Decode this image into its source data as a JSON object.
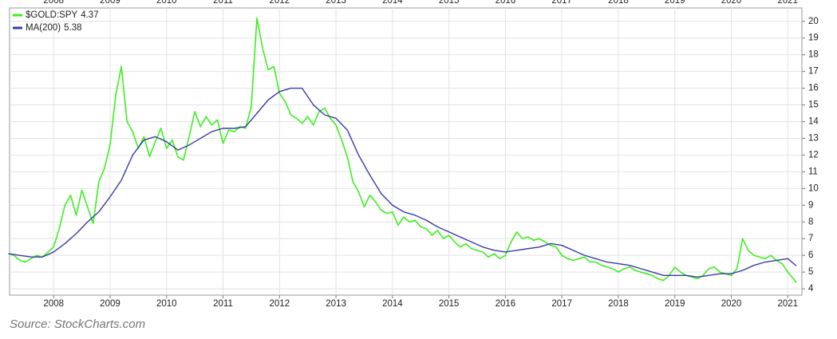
{
  "chart_data": {
    "type": "line",
    "source": "Source: StockCharts.com",
    "xlim": [
      2007.22,
      2021.25
    ],
    "xticks": [
      2008,
      2009,
      2010,
      2011,
      2012,
      2013,
      2014,
      2015,
      2016,
      2017,
      2018,
      2019,
      2020,
      2021
    ],
    "ylim": [
      3.62,
      20.8
    ],
    "yticks": [
      4,
      5,
      6,
      7,
      8,
      9,
      10,
      11,
      12,
      13,
      14,
      15,
      16,
      17,
      18,
      19,
      20
    ],
    "grid": true,
    "legend": "top-left",
    "series": [
      {
        "name": "$GOLD:SPY",
        "color": "#3def1f",
        "x": [
          2007.2,
          2007.3,
          2007.4,
          2007.5,
          2007.6,
          2007.7,
          2007.8,
          2007.9,
          2008.0,
          2008.1,
          2008.2,
          2008.3,
          2008.4,
          2008.5,
          2008.6,
          2008.7,
          2008.8,
          2008.9,
          2009.0,
          2009.1,
          2009.2,
          2009.3,
          2009.4,
          2009.5,
          2009.6,
          2009.7,
          2009.8,
          2009.9,
          2010.0,
          2010.1,
          2010.2,
          2010.3,
          2010.4,
          2010.5,
          2010.6,
          2010.7,
          2010.8,
          2010.9,
          2011.0,
          2011.1,
          2011.2,
          2011.3,
          2011.4,
          2011.5,
          2011.6,
          2011.7,
          2011.8,
          2011.9,
          2012.0,
          2012.1,
          2012.2,
          2012.3,
          2012.4,
          2012.5,
          2012.6,
          2012.7,
          2012.8,
          2012.9,
          2013.0,
          2013.1,
          2013.2,
          2013.3,
          2013.4,
          2013.5,
          2013.6,
          2013.7,
          2013.8,
          2013.9,
          2014.0,
          2014.1,
          2014.2,
          2014.3,
          2014.4,
          2014.5,
          2014.6,
          2014.7,
          2014.8,
          2014.9,
          2015.0,
          2015.1,
          2015.2,
          2015.3,
          2015.4,
          2015.5,
          2015.6,
          2015.7,
          2015.8,
          2015.9,
          2016.0,
          2016.1,
          2016.2,
          2016.3,
          2016.4,
          2016.5,
          2016.6,
          2016.7,
          2016.8,
          2016.9,
          2017.0,
          2017.1,
          2017.2,
          2017.3,
          2017.4,
          2017.5,
          2017.6,
          2017.7,
          2017.8,
          2017.9,
          2018.0,
          2018.1,
          2018.2,
          2018.3,
          2018.4,
          2018.5,
          2018.6,
          2018.7,
          2018.8,
          2018.9,
          2019.0,
          2019.1,
          2019.2,
          2019.3,
          2019.4,
          2019.5,
          2019.6,
          2019.7,
          2019.8,
          2019.9,
          2020.0,
          2020.1,
          2020.2,
          2020.3,
          2020.4,
          2020.5,
          2020.6,
          2020.7,
          2020.8,
          2020.9,
          2021.0,
          2021.1,
          2021.15
        ],
        "values": [
          6.1,
          6.0,
          5.7,
          5.6,
          5.8,
          6.0,
          5.9,
          6.2,
          6.5,
          7.6,
          9.0,
          9.6,
          8.4,
          9.9,
          8.9,
          7.9,
          10.4,
          11.2,
          12.6,
          15.6,
          17.3,
          14.0,
          13.4,
          12.4,
          13.1,
          11.9,
          12.8,
          13.6,
          12.4,
          12.9,
          11.9,
          11.7,
          13.1,
          14.6,
          13.7,
          14.3,
          13.8,
          14.1,
          12.7,
          13.5,
          13.4,
          13.7,
          13.6,
          14.9,
          20.2,
          18.4,
          17.1,
          17.3,
          15.7,
          15.2,
          14.4,
          14.2,
          13.9,
          14.3,
          13.8,
          14.6,
          14.8,
          14.2,
          13.8,
          12.9,
          11.9,
          10.4,
          9.8,
          8.9,
          9.6,
          9.2,
          8.7,
          8.5,
          8.6,
          7.8,
          8.3,
          8.0,
          8.1,
          7.7,
          7.6,
          7.2,
          7.5,
          7.0,
          7.2,
          6.8,
          6.5,
          6.7,
          6.4,
          6.3,
          6.2,
          5.9,
          6.1,
          5.8,
          6.0,
          6.8,
          7.4,
          7.0,
          7.1,
          6.9,
          7.0,
          6.8,
          6.6,
          6.5,
          6.0,
          5.8,
          5.7,
          5.8,
          5.9,
          5.6,
          5.6,
          5.4,
          5.3,
          5.2,
          5.0,
          5.2,
          5.3,
          5.1,
          5.0,
          4.9,
          4.8,
          4.6,
          4.5,
          4.8,
          5.3,
          5.0,
          4.8,
          4.7,
          4.6,
          4.8,
          5.2,
          5.3,
          5.0,
          4.9,
          4.8,
          5.2,
          7.0,
          6.3,
          6.0,
          5.9,
          5.8,
          6.0,
          5.7,
          5.5,
          5.0,
          4.6,
          4.37
        ]
      },
      {
        "name": "MA(200)",
        "color": "#3a3aa8",
        "x": [
          2007.2,
          2007.4,
          2007.6,
          2007.8,
          2008.0,
          2008.2,
          2008.4,
          2008.6,
          2008.8,
          2009.0,
          2009.2,
          2009.4,
          2009.6,
          2009.8,
          2010.0,
          2010.2,
          2010.4,
          2010.6,
          2010.8,
          2011.0,
          2011.2,
          2011.4,
          2011.6,
          2011.8,
          2012.0,
          2012.2,
          2012.4,
          2012.6,
          2012.8,
          2013.0,
          2013.2,
          2013.4,
          2013.6,
          2013.8,
          2014.0,
          2014.2,
          2014.4,
          2014.6,
          2014.8,
          2015.0,
          2015.2,
          2015.4,
          2015.6,
          2015.8,
          2016.0,
          2016.2,
          2016.4,
          2016.6,
          2016.8,
          2017.0,
          2017.2,
          2017.4,
          2017.6,
          2017.8,
          2018.0,
          2018.2,
          2018.4,
          2018.6,
          2018.8,
          2019.0,
          2019.2,
          2019.4,
          2019.6,
          2019.8,
          2020.0,
          2020.2,
          2020.4,
          2020.6,
          2020.8,
          2021.0,
          2021.15
        ],
        "values": [
          6.1,
          6.0,
          5.9,
          5.9,
          6.2,
          6.7,
          7.3,
          8.0,
          8.6,
          9.5,
          10.5,
          12.0,
          12.9,
          13.1,
          12.8,
          12.3,
          12.6,
          13.0,
          13.4,
          13.6,
          13.6,
          13.7,
          14.5,
          15.3,
          15.8,
          16.0,
          16.0,
          15.0,
          14.4,
          14.2,
          13.5,
          12.0,
          10.8,
          9.7,
          9.0,
          8.6,
          8.4,
          8.1,
          7.7,
          7.4,
          7.1,
          6.8,
          6.5,
          6.3,
          6.2,
          6.3,
          6.4,
          6.5,
          6.7,
          6.6,
          6.3,
          6.0,
          5.8,
          5.6,
          5.5,
          5.4,
          5.2,
          5.0,
          4.8,
          4.8,
          4.8,
          4.7,
          4.8,
          4.9,
          4.9,
          5.1,
          5.4,
          5.6,
          5.7,
          5.8,
          5.38
        ]
      }
    ]
  }
}
